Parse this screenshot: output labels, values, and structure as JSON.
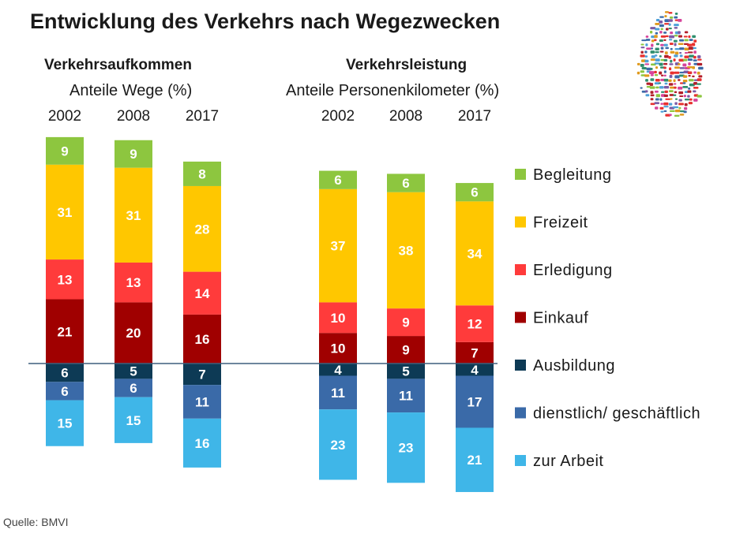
{
  "title": "Entwicklung des Verkehrs nach Wegezwecken",
  "source": "Quelle: BMVI",
  "colors": {
    "Begleitung": "#8dc63f",
    "Freizeit": "#ffc700",
    "Erledigung": "#ff3b3b",
    "Einkauf": "#a00000",
    "Ausbildung": "#0d3a55",
    "dienstlich/ geschäftlich": "#3a6aa8",
    "zur Arbeit": "#3fb6e8"
  },
  "logo_icon": "germany-traffic-map-icon",
  "chart_data": {
    "type": "bar",
    "stacking": "diverging",
    "legend_position": "right",
    "legend": [
      "Begleitung",
      "Freizeit",
      "Erledigung",
      "Einkauf",
      "Ausbildung",
      "dienstlich/ geschäftlich",
      "zur Arbeit"
    ],
    "above_baseline": [
      "Einkauf",
      "Erledigung",
      "Freizeit",
      "Begleitung"
    ],
    "below_baseline": [
      "Ausbildung",
      "dienstlich/ geschäftlich",
      "zur Arbeit"
    ],
    "panels": [
      {
        "title": "Verkehrsaufkommen",
        "subtitle": "Anteile Wege (%)",
        "categories": [
          "2002",
          "2008",
          "2017"
        ],
        "series": [
          {
            "name": "Begleitung",
            "values": [
              9,
              9,
              8
            ]
          },
          {
            "name": "Freizeit",
            "values": [
              31,
              31,
              28
            ]
          },
          {
            "name": "Erledigung",
            "values": [
              13,
              13,
              14
            ]
          },
          {
            "name": "Einkauf",
            "values": [
              21,
              20,
              16
            ]
          },
          {
            "name": "Ausbildung",
            "values": [
              6,
              5,
              7
            ]
          },
          {
            "name": "dienstlich/ geschäftlich",
            "values": [
              6,
              6,
              11
            ]
          },
          {
            "name": "zur Arbeit",
            "values": [
              15,
              15,
              16
            ]
          }
        ]
      },
      {
        "title": "Verkehrsleistung",
        "subtitle": "Anteile Personenkilometer  (%)",
        "categories": [
          "2002",
          "2008",
          "2017"
        ],
        "series": [
          {
            "name": "Begleitung",
            "values": [
              6,
              6,
              6
            ]
          },
          {
            "name": "Freizeit",
            "values": [
              37,
              38,
              34
            ]
          },
          {
            "name": "Erledigung",
            "values": [
              10,
              9,
              12
            ]
          },
          {
            "name": "Einkauf",
            "values": [
              10,
              9,
              7
            ]
          },
          {
            "name": "Ausbildung",
            "values": [
              4,
              5,
              4
            ]
          },
          {
            "name": "dienstlich/ geschäftlich",
            "values": [
              11,
              11,
              17
            ]
          },
          {
            "name": "zur Arbeit",
            "values": [
              23,
              23,
              21
            ]
          }
        ]
      }
    ]
  }
}
